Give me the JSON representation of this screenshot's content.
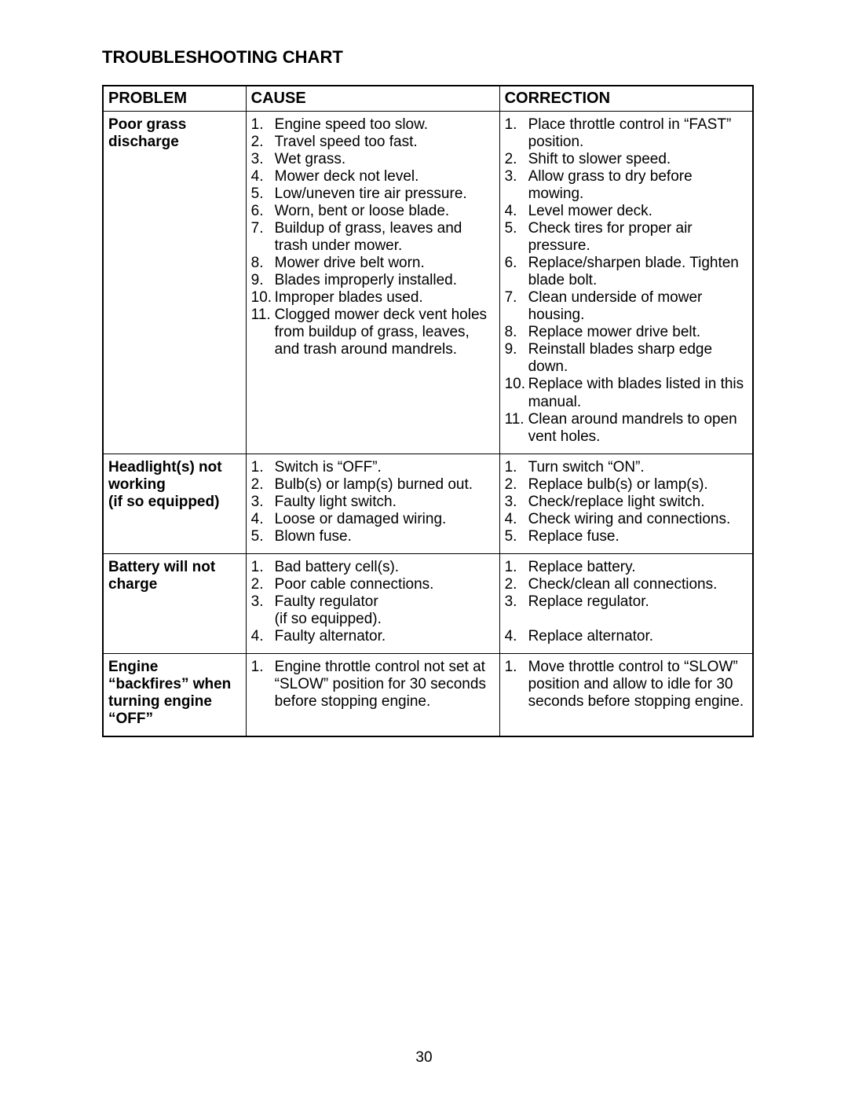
{
  "title": "TROUBLESHOOTING CHART",
  "headers": {
    "problem": "PROBLEM",
    "cause": "CAUSE",
    "correction": "CORRECTION"
  },
  "page_number": "30",
  "rows": [
    {
      "problem": "Poor grass discharge",
      "causes": [
        "Engine speed too slow.",
        "Travel speed too fast.",
        "Wet grass.",
        "Mower deck not level.",
        "Low/uneven tire air pressure.",
        "Worn, bent or loose blade.",
        "Buildup of grass, leaves and trash under mower.",
        "Mower drive belt worn.",
        "Blades improperly installed.",
        "Improper blades used.",
        "Clogged mower deck vent holes from buildup of grass, leaves, and trash around mandrels."
      ],
      "corrections": [
        "Place throttle control in “FAST” position.",
        "Shift to slower speed.",
        "Allow grass to dry before mowing.",
        "Level mower deck.",
        "Check tires for proper air pressure.",
        "Replace/sharpen blade. Tighten blade bolt.",
        "Clean underside of mower housing.",
        "Replace mower drive belt.",
        "Reinstall blades sharp edge down.",
        "Replace with blades listed in this manual.",
        "Clean around mandrels to open vent holes."
      ]
    },
    {
      "problem": "Headlight(s) not working\n(if so equipped)",
      "causes": [
        "Switch is “OFF”.",
        "Bulb(s) or lamp(s) burned out.",
        "Faulty light switch.",
        "Loose or damaged wiring.",
        "Blown fuse."
      ],
      "corrections": [
        "Turn switch “ON”.",
        "Replace bulb(s) or lamp(s).",
        "Check/replace light switch.",
        "Check wiring and connections.",
        "Replace fuse."
      ]
    },
    {
      "problem": "Battery will not charge",
      "causes": [
        "Bad battery cell(s).",
        "Poor cable connections.",
        "Faulty regulator\n(if so equipped).",
        "Faulty alternator."
      ],
      "corrections": [
        "Replace battery.",
        "Check/clean all connections.",
        "Replace regulator.",
        "Replace alternator."
      ],
      "correction_spacer_after": 2
    },
    {
      "problem": "Engine “backfires” when turning engine “OFF”",
      "causes": [
        "Engine throttle control not set at “SLOW” position for 30 seconds before stopping engine."
      ],
      "corrections": [
        "Move throttle control to “SLOW” position and allow to idle for 30 seconds before stopping engine."
      ]
    }
  ]
}
